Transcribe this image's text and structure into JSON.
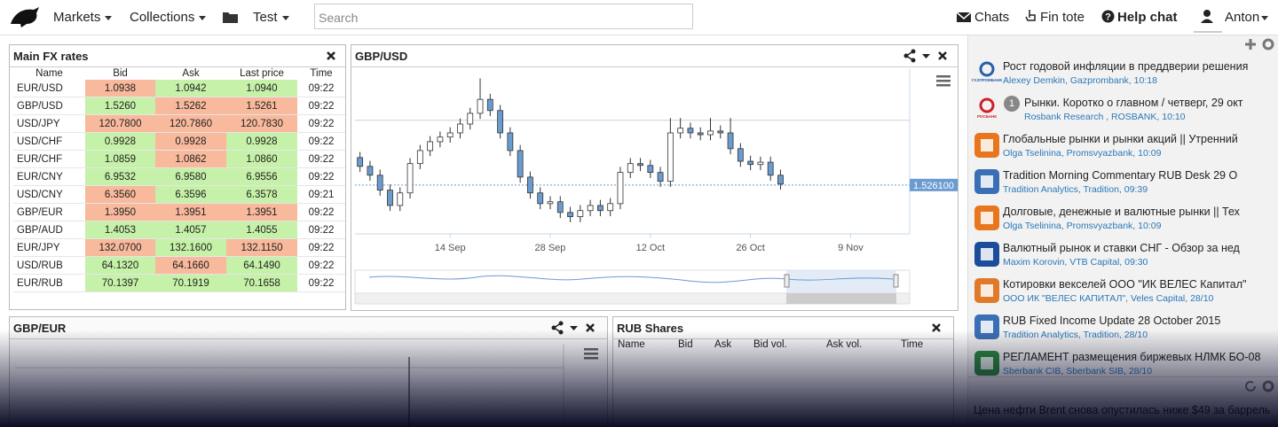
{
  "nav": {
    "menus": [
      "Markets",
      "Collections",
      "Test"
    ],
    "search_placeholder": "Search",
    "links": [
      "Chats",
      "Fin tote",
      "Help chat"
    ],
    "user": "Anton"
  },
  "fx_table": {
    "title": "Main FX rates",
    "columns": [
      "Name",
      "Bid",
      "Ask",
      "Last price",
      "Time"
    ],
    "rows": [
      [
        "EUR/USD",
        "1.0938",
        "1.0942",
        "1.0940",
        "09:22"
      ],
      [
        "GBP/USD",
        "1.5260",
        "1.5262",
        "1.5261",
        "09:22"
      ],
      [
        "USD/JPY",
        "120.7800",
        "120.7860",
        "120.7830",
        "09:22"
      ],
      [
        "USD/CHF",
        "0.9928",
        "0.9928",
        "0.9928",
        "09:22"
      ],
      [
        "EUR/CHF",
        "1.0859",
        "1.0862",
        "1.0860",
        "09:22"
      ],
      [
        "EUR/CNY",
        "6.9532",
        "6.9580",
        "6.9556",
        "09:22"
      ],
      [
        "USD/CNY",
        "6.3560",
        "6.3596",
        "6.3578",
        "09:21"
      ],
      [
        "GBP/EUR",
        "1.3950",
        "1.3951",
        "1.3951",
        "09:22"
      ],
      [
        "GBP/AUD",
        "1.4053",
        "1.4057",
        "1.4055",
        "09:22"
      ],
      [
        "EUR/JPY",
        "132.0700",
        "132.1600",
        "132.1150",
        "09:22"
      ],
      [
        "USD/RUB",
        "64.1320",
        "64.1660",
        "64.1490",
        "09:22"
      ],
      [
        "EUR/RUB",
        "70.1397",
        "70.1919",
        "70.1658",
        "09:22"
      ]
    ],
    "cell_colors": [
      [
        "r",
        "g",
        "g"
      ],
      [
        "g",
        "r",
        "r"
      ],
      [
        "r",
        "r",
        "r"
      ],
      [
        "g",
        "r",
        "g"
      ],
      [
        "g",
        "r",
        "g"
      ],
      [
        "g",
        "g",
        "g"
      ],
      [
        "r",
        "g",
        "g"
      ],
      [
        "r",
        "r",
        "r"
      ],
      [
        "g",
        "g",
        "g"
      ],
      [
        "r",
        "g",
        "r"
      ],
      [
        "g",
        "r",
        "g"
      ],
      [
        "g",
        "g",
        "g"
      ]
    ],
    "palette": {
      "r": "#f8b99c",
      "g": "#c6f1a8"
    }
  },
  "chart_data": {
    "type": "candlestick",
    "title": "GBP/USD",
    "categories": [
      null,
      null,
      null,
      null,
      null,
      null,
      null,
      null,
      null,
      null,
      null,
      null,
      null,
      null,
      null,
      null,
      null,
      null,
      null,
      null,
      null,
      null,
      null,
      null,
      null,
      null,
      null,
      null,
      null,
      null,
      null,
      null,
      null,
      null,
      null,
      null,
      null,
      null,
      null,
      null,
      null,
      null,
      null
    ],
    "open": [
      1.532,
      1.5301,
      1.5282,
      1.525,
      1.5217,
      1.5244,
      1.5307,
      1.5335,
      1.5354,
      1.5364,
      1.5373,
      1.5392,
      1.5415,
      1.5445,
      1.5421,
      1.5373,
      1.5335,
      1.5278,
      1.5244,
      1.5221,
      1.5225,
      1.5202,
      1.5193,
      1.5206,
      1.5217,
      1.5206,
      1.5221,
      1.5288,
      1.5307,
      1.5303,
      1.5288,
      1.5269,
      1.5373,
      1.5383,
      1.5373,
      1.5369,
      1.5377,
      1.5373,
      1.5339,
      1.5312,
      1.5305,
      1.531,
      1.5282
    ],
    "high": [
      1.5332,
      1.5313,
      1.5294,
      1.5262,
      1.5256,
      1.5319,
      1.5347,
      1.5366,
      1.5376,
      1.5385,
      1.5404,
      1.5427,
      1.549,
      1.5457,
      1.5433,
      1.5385,
      1.5347,
      1.529,
      1.5256,
      1.5237,
      1.5237,
      1.5214,
      1.5218,
      1.5229,
      1.5229,
      1.5233,
      1.53,
      1.5319,
      1.5319,
      1.5315,
      1.53,
      1.5405,
      1.5405,
      1.5395,
      1.5385,
      1.5405,
      1.5389,
      1.5405,
      1.5351,
      1.5324,
      1.5322,
      1.5322,
      1.5294
    ],
    "low": [
      1.5289,
      1.527,
      1.5238,
      1.5205,
      1.5205,
      1.5232,
      1.5295,
      1.5323,
      1.5342,
      1.5352,
      1.5361,
      1.538,
      1.5403,
      1.5409,
      1.5361,
      1.5323,
      1.5266,
      1.5232,
      1.5209,
      1.5209,
      1.519,
      1.5181,
      1.5181,
      1.5194,
      1.5194,
      1.5194,
      1.5209,
      1.5276,
      1.5291,
      1.5276,
      1.5257,
      1.5257,
      1.5361,
      1.5361,
      1.5357,
      1.5357,
      1.5361,
      1.5327,
      1.53,
      1.5293,
      1.5293,
      1.527,
      1.5251
    ],
    "close": [
      1.5301,
      1.5282,
      1.525,
      1.5217,
      1.5244,
      1.5307,
      1.5335,
      1.5354,
      1.5364,
      1.5373,
      1.5392,
      1.5415,
      1.5445,
      1.5421,
      1.5373,
      1.5335,
      1.5278,
      1.5244,
      1.5221,
      1.5225,
      1.5202,
      1.5193,
      1.5206,
      1.5217,
      1.5206,
      1.5221,
      1.5288,
      1.5307,
      1.5303,
      1.5288,
      1.5269,
      1.5373,
      1.5383,
      1.5373,
      1.5369,
      1.5377,
      1.5373,
      1.5339,
      1.5312,
      1.5305,
      1.531,
      1.5282,
      1.5263
    ],
    "xlim": [
      -0.5,
      54.9
    ],
    "xticks": [
      {
        "value": 9,
        "label": "14 Sep"
      },
      {
        "value": 19,
        "label": "28 Sep"
      },
      {
        "value": 29,
        "label": "12 Oct"
      },
      {
        "value": 39,
        "label": "26 Oct"
      },
      {
        "value": 49,
        "label": "9 Nov"
      }
    ],
    "ylim": [
      1.5156,
      1.551
    ],
    "yticks": [
      1.54
    ],
    "grid": true,
    "current_price": {
      "value": 1.5261,
      "label": "1.526100"
    },
    "up_color": "#ffffff",
    "down_color": "#6a9bd1"
  },
  "gbp_eur_panel": {
    "title": "GBP/EUR"
  },
  "rub_shares": {
    "title": "RUB Shares",
    "columns": [
      "Name",
      "Bid",
      "Ask",
      "Bid vol.",
      "Ask vol.",
      "Time"
    ]
  },
  "news": {
    "items": [
      {
        "logo": "ГАЗПРОМБАНК",
        "icon_color": "#2a5ea8",
        "title": "Рост годовой инфляции в преддверии решения",
        "meta": "Alexey Demkin, Gazprombank, 10:18"
      },
      {
        "logo": "РОСБАНК",
        "icon_color": "#d0202a",
        "badge": "1",
        "title": "Рынки. Коротко о главном / четверг, 29 окт",
        "meta": "Rosbank Research , ROSBANK, 10:10"
      },
      {
        "icon_color": "#e8761e",
        "title": "Глобальные рынки и рынки акций || Утренний",
        "meta": "Olga Tselinina, Promsvyazbank, 10:09"
      },
      {
        "icon_color": "#3b6fb5",
        "title": "Tradition Morning Commentary RUB Desk 29 O",
        "meta": "Tradition Analytics, Tradition, 09:39"
      },
      {
        "icon_color": "#e8761e",
        "title": "Долговые, денежные и валютные рынки || Тех",
        "meta": "Olga Tselinina, Promsvyazbank, 10:09"
      },
      {
        "icon_color": "#1b4d9b",
        "title": "Валютный рынок и ставки СНГ - Обзор за нед",
        "meta": "Maxim Korovin, VTB Capital, 09:30"
      },
      {
        "icon_color": "#e07a2a",
        "title": "Котировки векселей ООО \"ИК ВЕЛЕС Капитал\"",
        "meta": "ООО ИК \"ВЕЛЕС КАПИТАЛ\", Veles Capital, 28/10"
      },
      {
        "icon_color": "#3b6fb5",
        "title": "RUB Fixed Income Update 28 October 2015",
        "meta": "Tradition Analytics, Tradition, 28/10"
      },
      {
        "icon_color": "#2c8a3e",
        "title": "РЕГЛАМЕНТ размещения биржевых НЛМК БО-08",
        "meta": "Sberbank CIB, Sberbank SIB, 28/10"
      }
    ],
    "footer": "Цена нефти Brent снова опустилась ниже $49 за баррель"
  }
}
